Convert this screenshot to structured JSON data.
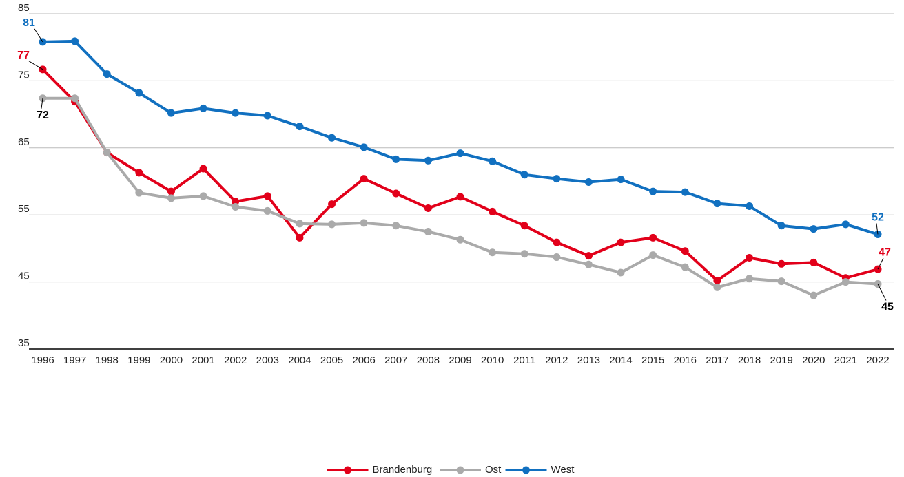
{
  "chart_data": {
    "type": "line",
    "x": [
      1996,
      1997,
      1998,
      1999,
      2000,
      2001,
      2002,
      2003,
      2004,
      2005,
      2006,
      2007,
      2008,
      2009,
      2010,
      2011,
      2012,
      2013,
      2014,
      2015,
      2016,
      2017,
      2018,
      2019,
      2020,
      2021,
      2022
    ],
    "xlim": [
      1996,
      2022
    ],
    "ylim": [
      35,
      85
    ],
    "yticks": [
      35,
      45,
      55,
      65,
      75,
      85
    ],
    "grid": true,
    "legend": "bottom",
    "series": [
      {
        "name": "Brandenburg",
        "color": "#e2001a",
        "label_color": "#e2001a",
        "values": [
          76.7,
          71.9,
          64.3,
          61.3,
          58.5,
          61.9,
          57.0,
          57.8,
          51.6,
          56.6,
          60.4,
          58.2,
          56.0,
          57.7,
          55.5,
          53.4,
          50.9,
          48.9,
          50.9,
          51.6,
          49.6,
          45.2,
          48.6,
          47.7,
          47.9,
          45.6,
          46.9
        ],
        "value_labels": [
          "77",
          null,
          null,
          null,
          null,
          null,
          null,
          null,
          null,
          null,
          null,
          null,
          null,
          null,
          null,
          null,
          null,
          null,
          null,
          null,
          null,
          null,
          null,
          null,
          null,
          null,
          "47"
        ]
      },
      {
        "name": "Ost",
        "color": "#aaaaaa",
        "label_color": "#000000",
        "values": [
          72.4,
          72.4,
          64.3,
          58.3,
          57.5,
          57.8,
          56.2,
          55.6,
          53.7,
          53.6,
          53.8,
          53.4,
          52.5,
          51.3,
          49.4,
          49.2,
          48.7,
          47.6,
          46.4,
          49.0,
          47.2,
          44.2,
          45.5,
          45.1,
          43.0,
          45.0,
          44.7
        ],
        "value_labels": [
          "72",
          null,
          null,
          null,
          null,
          null,
          null,
          null,
          null,
          null,
          null,
          null,
          null,
          null,
          null,
          null,
          null,
          null,
          null,
          null,
          null,
          null,
          null,
          null,
          null,
          null,
          "45"
        ]
      },
      {
        "name": "West",
        "color": "#1170c0",
        "label_color": "#1170c0",
        "values": [
          80.8,
          80.9,
          76.0,
          73.2,
          70.2,
          70.9,
          70.2,
          69.8,
          68.2,
          66.5,
          65.1,
          63.3,
          63.1,
          64.2,
          63.0,
          61.0,
          60.4,
          59.9,
          60.3,
          58.5,
          58.4,
          56.7,
          56.3,
          53.4,
          52.9,
          53.6,
          52.1
        ],
        "value_labels": [
          "81",
          null,
          null,
          null,
          null,
          null,
          null,
          null,
          null,
          null,
          null,
          null,
          null,
          null,
          null,
          null,
          null,
          null,
          null,
          null,
          null,
          null,
          null,
          null,
          null,
          null,
          "52"
        ]
      }
    ]
  }
}
